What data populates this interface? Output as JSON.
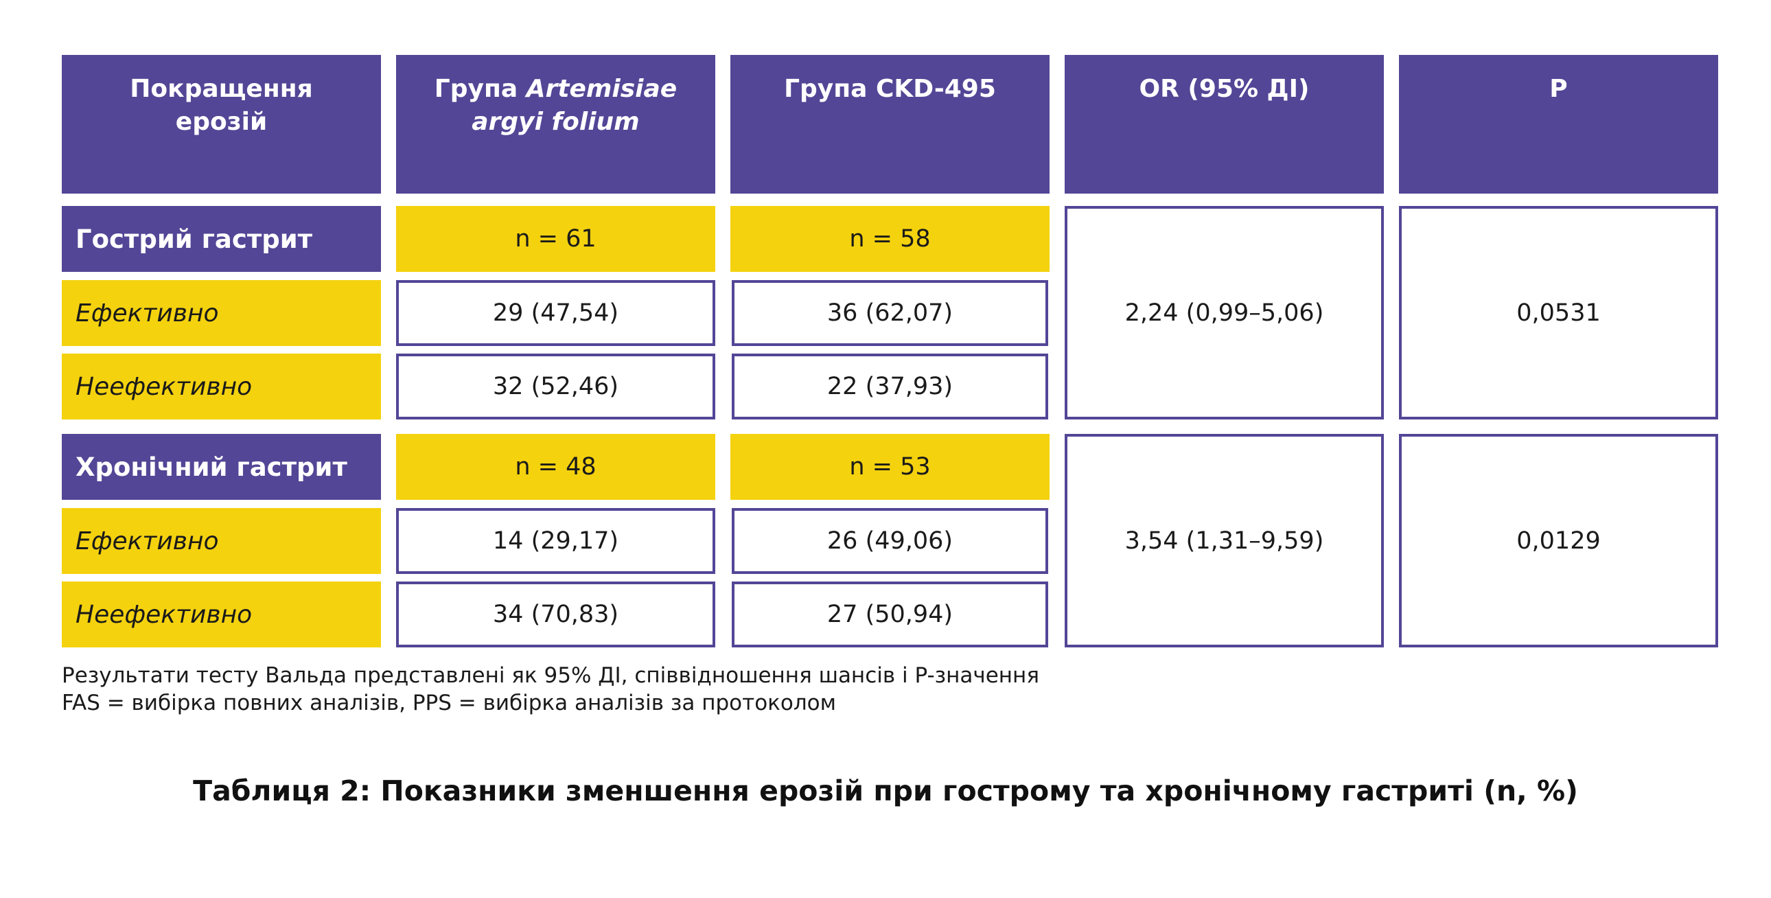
{
  "header": {
    "col1": [
      "Покращення",
      "ерозій"
    ],
    "col2_prefix": "Група ",
    "col2_italic_line1": "Artemisiae",
    "col2_italic_line2": "argyi folium",
    "col3": "Група CKD-495",
    "col4": "OR (95% ДІ)",
    "col5": "P"
  },
  "groups": [
    {
      "title": "Гострий гастрит",
      "n_artemisiae": "n = 61",
      "n_ckd": "n = 58",
      "rows": [
        {
          "label": "Ефективно",
          "artemisiae": "29 (47,54)",
          "ckd": "36 (62,07)"
        },
        {
          "label": "Неефективно",
          "artemisiae": "32 (52,46)",
          "ckd": "22 (37,93)"
        }
      ],
      "or_ci": "2,24 (0,99–5,06)",
      "p": "0,0531"
    },
    {
      "title": "Хронічний гастрит",
      "n_artemisiae": "n = 48",
      "n_ckd": "n = 53",
      "rows": [
        {
          "label": "Ефективно",
          "artemisiae": "14 (29,17)",
          "ckd": "26 (49,06)"
        },
        {
          "label": "Неефективно",
          "artemisiae": "34 (70,83)",
          "ckd": "27 (50,94)"
        }
      ],
      "or_ci": "3,54 (1,31–9,59)",
      "p": "0,0129"
    }
  ],
  "notes": [
    "Результати тесту Вальда представлені як 95% ДІ, співвідношення шансів і P-значення",
    "FAS = вибірка повних аналізів, PPS = вибірка аналізів за протоколом"
  ],
  "caption": "Таблиця 2: Показники зменшення ерозій при гострому та хронічному гастриті (n, %)",
  "colors": {
    "purple": "#534696",
    "yellow": "#f4d20e"
  }
}
